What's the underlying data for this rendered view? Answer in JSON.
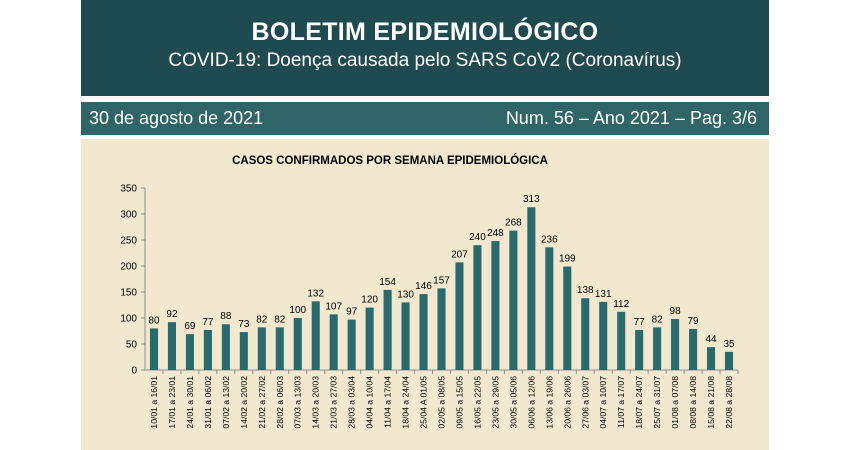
{
  "header": {
    "title": "BOLETIM EPIDEMIOLÓGICO",
    "subtitle": "COVID-19: Doença  causada pelo SARS CoV2 (Coronavírus)"
  },
  "infobar": {
    "date": "30 de agosto de 2021",
    "issue": "Num. 56 – Ano 2021 – Pag. 3/6"
  },
  "colors": {
    "header_bg": "#1f4a4f",
    "infobar_bg": "#2f6567",
    "chart_bg": "#f2e8cf",
    "bar": "#2b6a6c"
  },
  "chart_data": {
    "type": "bar",
    "title": "CASOS CONFIRMADOS POR SEMANA EPIDEMIOLÓGICA",
    "xlabel": "",
    "ylabel": "",
    "ylim": [
      0,
      350
    ],
    "yticks": [
      0,
      50,
      100,
      150,
      200,
      250,
      300,
      350
    ],
    "grid": false,
    "categories": [
      "10/01 a 16/01",
      "17/01 a 23/01",
      "24/01 a 30/01",
      "31/01 a 06/02",
      "07/02 a 13/02",
      "14/02 a 20/02",
      "21/02 a 27/02",
      "28/02 a 06/03",
      "07/03 a 13/03",
      "14/03 a 20/03",
      "21/03 a 27/03",
      "28/03 a 03/04",
      "04/04 a 10/04",
      "11/04 a 17/04",
      "18/04 a 24/04",
      "25/04 A 01/05",
      "02/05 a 08/05",
      "09/05 a 15/05",
      "16/05 a 22/05",
      "23/05 a 29/05",
      "30/05 a 05/06",
      "06/06 a 12/06",
      "13/06 a 19/06",
      "20/06 a 26/06",
      "27/06 a 03/07",
      "04/07 a 10/07",
      "11/07 a 17/07",
      "18/07 a 24/07",
      "25/07 a 31/07",
      "01/08 a 07/08",
      "08/08 a 14/08",
      "15/08 a 21/08",
      "22/08 a 28/08"
    ],
    "values": [
      80,
      92,
      69,
      77,
      88,
      73,
      82,
      82,
      100,
      132,
      107,
      97,
      120,
      154,
      130,
      146,
      157,
      207,
      240,
      248,
      268,
      313,
      236,
      199,
      138,
      131,
      112,
      77,
      82,
      98,
      79,
      44,
      35
    ]
  }
}
